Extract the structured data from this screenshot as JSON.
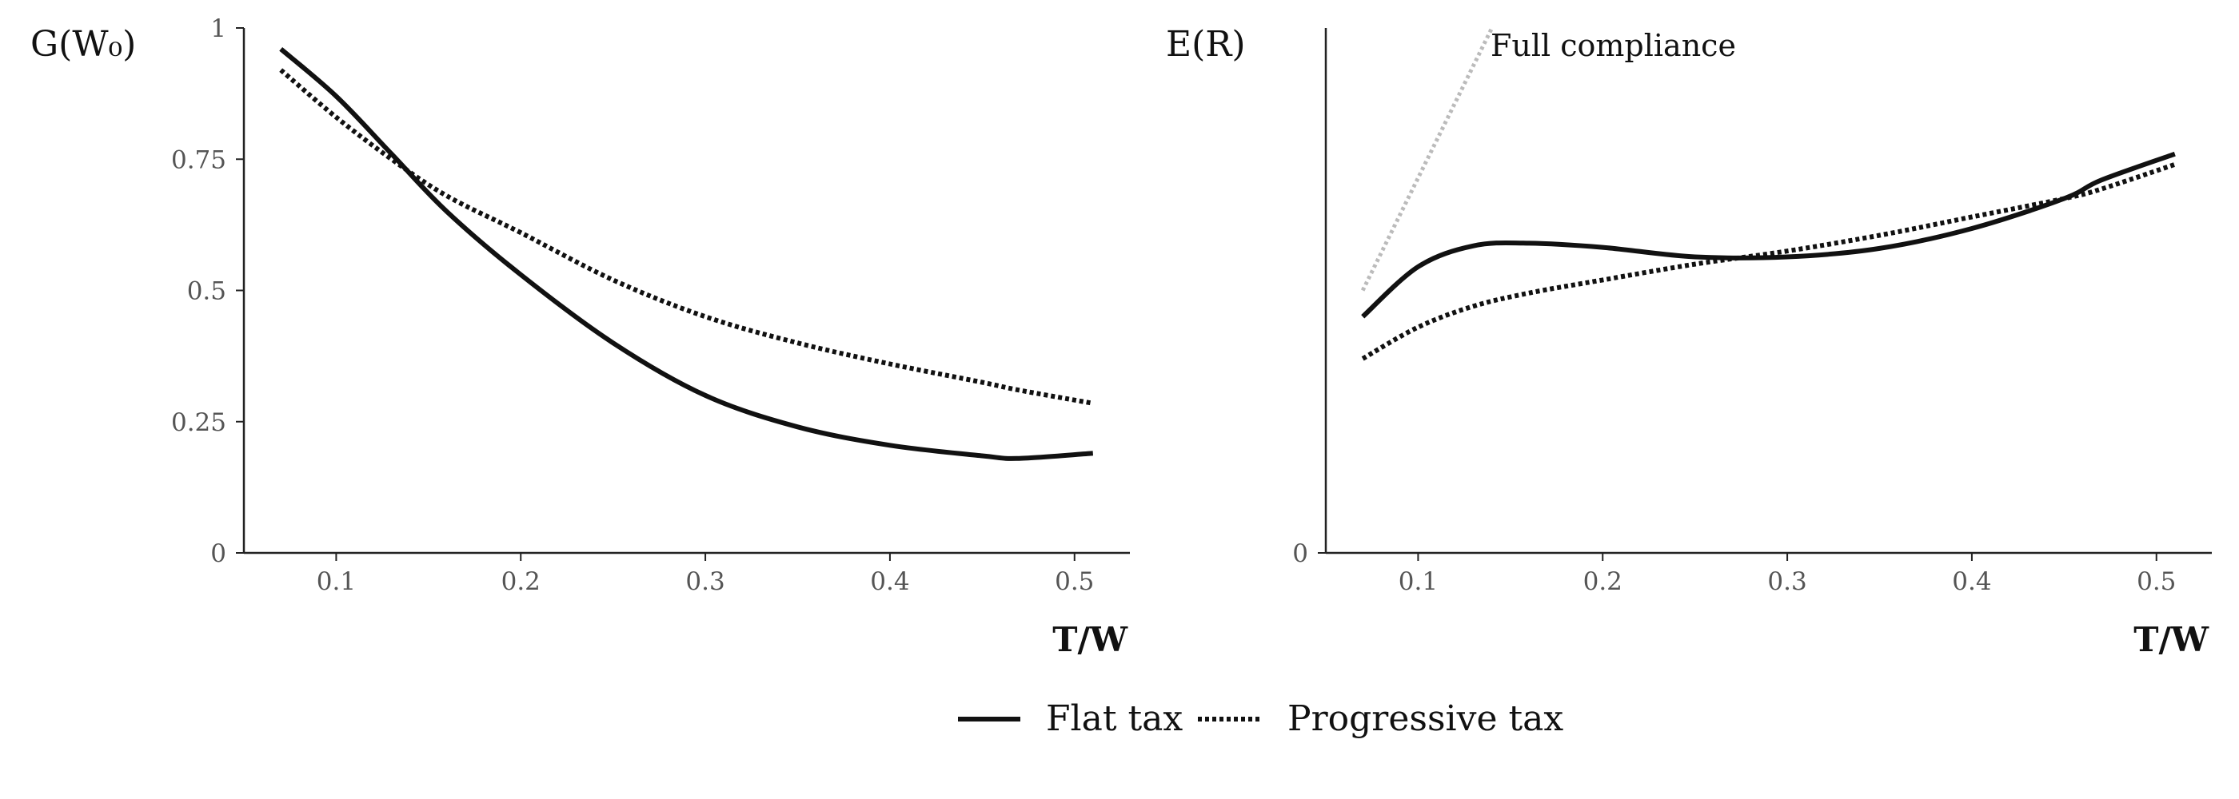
{
  "chart_data": [
    {
      "type": "line",
      "ylabel": "G(W₀)",
      "xlabel": "T/W",
      "xlim": [
        0.05,
        0.53
      ],
      "ylim": [
        0,
        1
      ],
      "xticks": [
        "0.1",
        "0.2",
        "0.3",
        "0.4",
        "0.5"
      ],
      "yticks": [
        "0",
        "0.25",
        "0.5",
        "0.75",
        "1"
      ],
      "x": [
        0.07,
        0.1,
        0.13,
        0.16,
        0.2,
        0.25,
        0.3,
        0.35,
        0.4,
        0.45,
        0.47,
        0.51
      ],
      "series": [
        {
          "name": "Flat tax",
          "style": "solid",
          "values": [
            0.96,
            0.87,
            0.76,
            0.65,
            0.53,
            0.4,
            0.3,
            0.24,
            0.205,
            0.185,
            0.18,
            0.19
          ]
        },
        {
          "name": "Progressive tax",
          "style": "dotted",
          "values": [
            0.92,
            0.83,
            0.75,
            0.68,
            0.61,
            0.52,
            0.45,
            0.4,
            0.36,
            0.325,
            0.31,
            0.285
          ]
        }
      ]
    },
    {
      "type": "line",
      "ylabel": "E(R)",
      "xlabel": "T/W",
      "xlim": [
        0.05,
        0.53
      ],
      "ylim": [
        0,
        1
      ],
      "xticks": [
        "0.1",
        "0.2",
        "0.3",
        "0.4",
        "0.5"
      ],
      "yticks": [
        "0"
      ],
      "x": [
        0.07,
        0.1,
        0.13,
        0.16,
        0.2,
        0.25,
        0.3,
        0.35,
        0.4,
        0.45,
        0.47,
        0.51
      ],
      "series": [
        {
          "name": "Flat tax",
          "style": "solid",
          "values": [
            0.45,
            0.545,
            0.585,
            0.59,
            0.582,
            0.564,
            0.564,
            0.58,
            0.618,
            0.675,
            0.71,
            0.76
          ]
        },
        {
          "name": "Progressive tax",
          "style": "dotted",
          "values": [
            0.37,
            0.43,
            0.47,
            0.495,
            0.52,
            0.55,
            0.575,
            0.605,
            0.64,
            0.675,
            0.693,
            0.74
          ]
        },
        {
          "name": "Full compliance",
          "style": "dotted-light",
          "color": "#bbbbbb",
          "x": [
            0.07,
            0.14
          ],
          "values": [
            0.5,
            1.0
          ]
        }
      ],
      "annotations": [
        "Full compliance"
      ]
    }
  ],
  "legend": {
    "placement": "bottom-center",
    "items": [
      {
        "label": "Flat tax",
        "style": "solid"
      },
      {
        "label": "Progressive tax",
        "style": "dotted"
      }
    ]
  }
}
